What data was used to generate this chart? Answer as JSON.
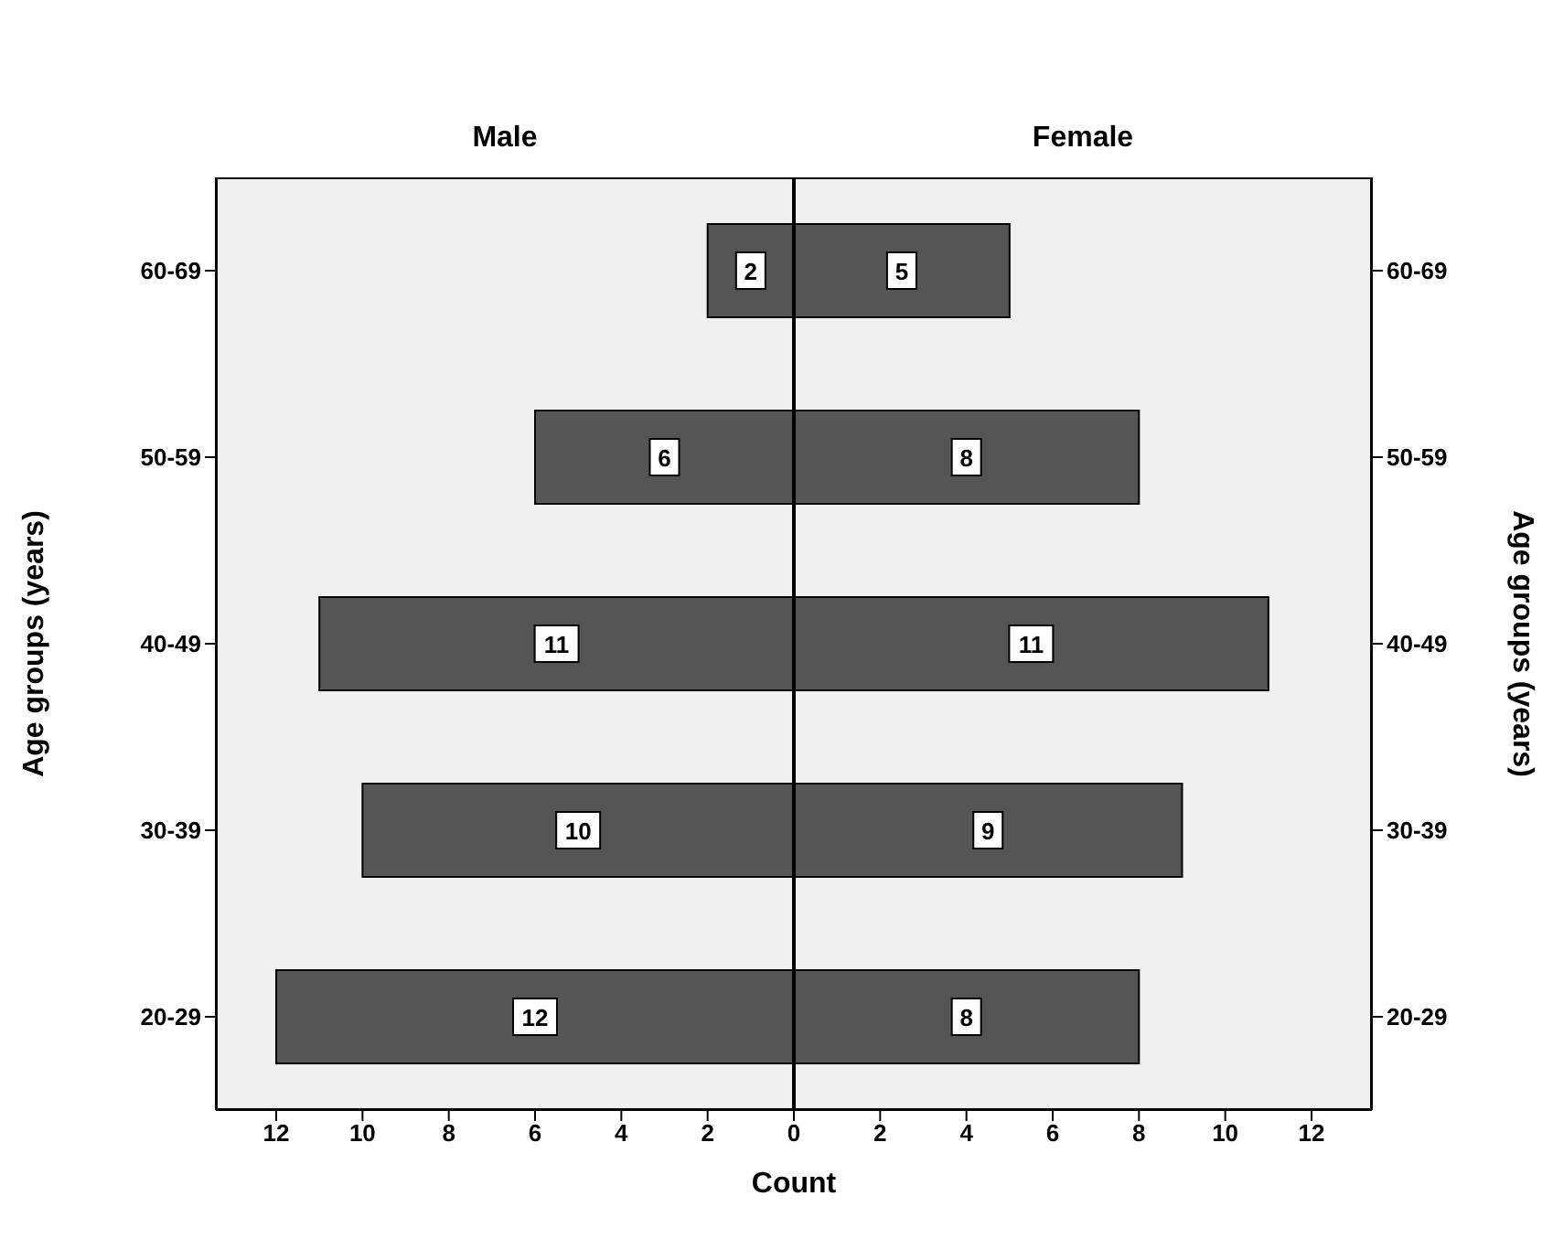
{
  "chart_data": [
    {
      "type": "bar",
      "orientation": "horizontal",
      "title": "Male",
      "ylabel": "Age groups (years)",
      "categories": [
        "60-69",
        "50-59",
        "40-49",
        "30-39",
        "20-29"
      ],
      "data_labels": true,
      "series": [
        {
          "color": "#555555",
          "values": [
            2,
            6,
            11,
            10,
            12
          ]
        }
      ],
      "xlim": [
        13.4,
        0
      ],
      "xticks": [
        12,
        10,
        8,
        6,
        4,
        2,
        {
          "value": 0,
          "label": null
        }
      ]
    },
    {
      "type": "bar",
      "orientation": "horizontal",
      "title": "Female",
      "y2label": "Age groups (years)",
      "xlabel": "Count",
      "categories": [
        "60-69",
        "50-59",
        "40-49",
        "30-39",
        "20-29"
      ],
      "data_labels": true,
      "series": [
        {
          "color": "#555555",
          "values": [
            5,
            8,
            11,
            9,
            8
          ]
        }
      ],
      "xlim": [
        0,
        13.4
      ],
      "xticks": [
        0,
        2,
        4,
        6,
        8,
        10,
        12
      ]
    }
  ]
}
